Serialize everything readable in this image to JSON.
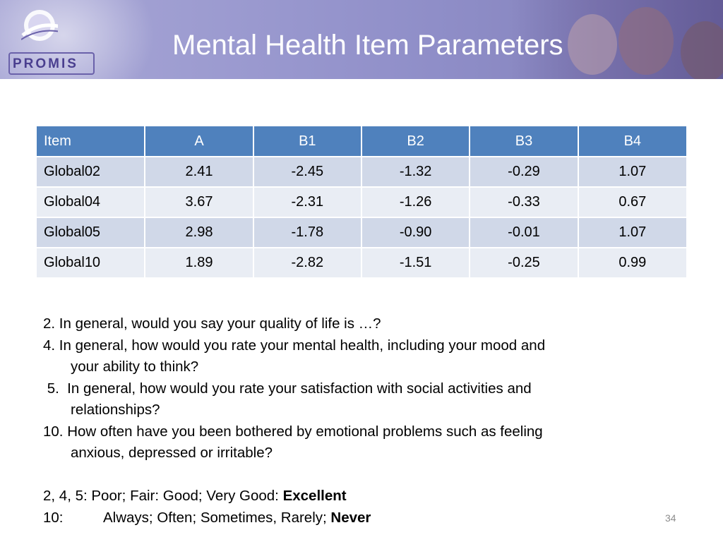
{
  "header": {
    "logo_text": "PROMIS",
    "title": "Mental Health Item Parameters"
  },
  "table": {
    "columns": [
      "Item",
      "A",
      "B1",
      "B2",
      "B3",
      "B4"
    ],
    "rows": [
      [
        "Global02",
        "2.41",
        "-2.45",
        "-1.32",
        "-0.29",
        "1.07"
      ],
      [
        "Global04",
        "3.67",
        "-2.31",
        "-1.26",
        "-0.33",
        "0.67"
      ],
      [
        "Global05",
        "2.98",
        "-1.78",
        "-0.90",
        "-0.01",
        "1.07"
      ],
      [
        "Global10",
        "1.89",
        "-2.82",
        "-1.51",
        "-0.25",
        "0.99"
      ]
    ]
  },
  "questions": {
    "q2": "2.  In general, would you say your quality of life  is …?",
    "q4_a": "4.   In general, how would you rate your mental health, including  your mood and",
    "q4_b": "your ability to think?",
    "q5_a": " 5.  In general, how would you rate your satisfaction with social activities and",
    "q5_b": "relationships?",
    "q10_a": "10. How often have you been bothered by emotional problems such as feeling",
    "q10_b": "anxious, depressed or irritable?"
  },
  "scales": {
    "s1_prefix": "2, 4, 5: Poor; Fair: Good; Very Good: ",
    "s1_bold": "Excellent",
    "s2_label": "10:",
    "s2_prefix": "Always; Often; Sometimes, Rarely; ",
    "s2_bold": "Never"
  },
  "footer": {
    "page_number": "34"
  },
  "colors": {
    "table_header": "#4f81bd",
    "row_odd": "#d0d8e8",
    "row_even": "#e9edf4",
    "banner": "#9a99cf"
  }
}
